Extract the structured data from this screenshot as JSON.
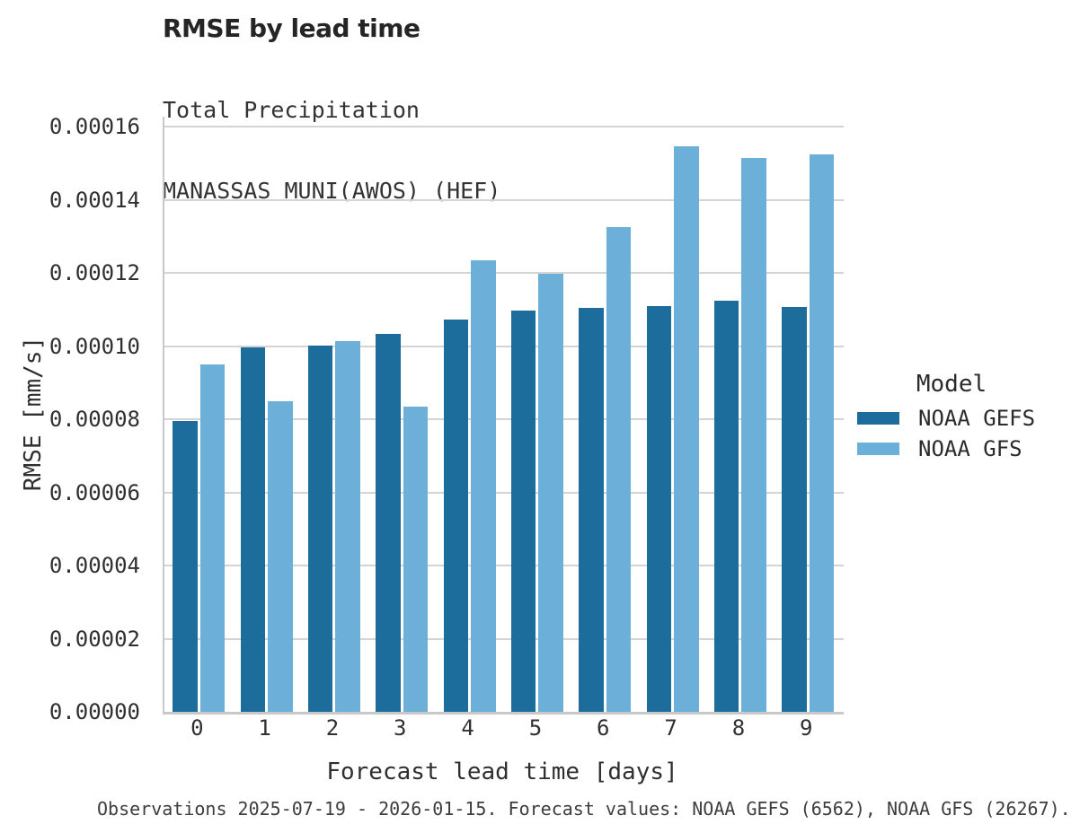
{
  "chart_data": {
    "type": "bar",
    "title": "RMSE by lead time",
    "subtitle_lines": [
      "Total Precipitation",
      "MANASSAS MUNI(AWOS) (HEF)"
    ],
    "xlabel": "Forecast lead time [days]",
    "ylabel": "RMSE [mm/s]",
    "categories": [
      "0",
      "1",
      "2",
      "3",
      "4",
      "5",
      "6",
      "7",
      "8",
      "9"
    ],
    "series": [
      {
        "name": "NOAA GEFS",
        "color": "#1d6d9c",
        "values": [
          7.94e-05,
          9.96e-05,
          0.0001002,
          0.0001033,
          0.0001072,
          0.0001096,
          0.0001104,
          0.000111,
          0.0001124,
          0.0001107
        ]
      },
      {
        "name": "NOAA GFS",
        "color": "#6cb0d9",
        "values": [
          9.5e-05,
          8.49e-05,
          0.0001013,
          8.34e-05,
          0.0001234,
          0.0001198,
          0.0001325,
          0.0001545,
          0.0001514,
          0.0001525
        ]
      }
    ],
    "ylim": [
      0,
      0.00016
    ],
    "ytick_values": [
      0,
      2e-05,
      4e-05,
      6e-05,
      8e-05,
      0.0001,
      0.00012,
      0.00014,
      0.00016
    ],
    "ytick_labels": [
      "0.00000",
      "0.00002",
      "0.00004",
      "0.00006",
      "0.00008",
      "0.00010",
      "0.00012",
      "0.00014",
      "0.00016"
    ],
    "grid": "horizontal",
    "legend_position": "right",
    "legend_title": "Model",
    "caption": "Observations 2025-07-19 - 2026-01-15. Forecast values: NOAA GEFS (6562), NOAA GFS (26267)."
  },
  "colors": {
    "gefs_bar": "#1d6d9c",
    "gfs_bar": "#6cb0d9",
    "gridline": "#d4d4d4",
    "axis_line": "#c8c8c8",
    "title_text": "#252525",
    "tick_text": "#303030",
    "caption_text": "#3d3d3d"
  }
}
